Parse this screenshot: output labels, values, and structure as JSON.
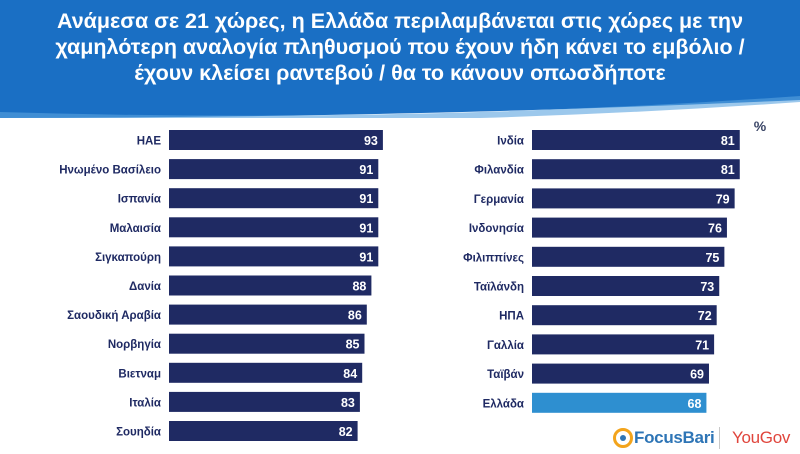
{
  "header": {
    "title_lines": [
      "Ανάμεσα σε  21 χώρες, η Ελλάδα περιλαμβάνεται στις χώρες με την",
      "χαμηλότερη αναλογία πληθυσμού που έχουν ήδη κάνει το εμβόλιο /",
      "έχουν κλείσει ραντεβού / θα το κάνουν οπωσδήποτε"
    ]
  },
  "colors": {
    "header_bg": "#1a6fc4",
    "bar": "#1f2a63",
    "highlight_bar": "#2e8fd0",
    "label": "#1f2a63"
  },
  "chart_data": [
    {
      "type": "bar",
      "orientation": "horizontal",
      "title": "",
      "xlabel": "",
      "ylabel": "",
      "xlim": [
        0,
        100
      ],
      "categories": [
        "ΗΑΕ",
        "Ηνωμένο Βασίλειο",
        "Ισπανία",
        "Μαλαισία",
        "Σιγκαπούρη",
        "Δανία",
        "Σαουδική Αραβία",
        "Νορβηγία",
        "Βιετναμ",
        "Ιταλία",
        "Σουηδία"
      ],
      "values": [
        93,
        91,
        91,
        91,
        91,
        88,
        86,
        85,
        84,
        83,
        82
      ],
      "highlight": []
    },
    {
      "type": "bar",
      "orientation": "horizontal",
      "title": "",
      "xlabel": "",
      "ylabel": "",
      "unit_label": "%",
      "xlim": [
        0,
        100
      ],
      "categories": [
        "Ινδία",
        "Φιλανδία",
        "Γερμανία",
        "Ινδονησία",
        "Φιλιππίνες",
        "Ταϊλάνδη",
        "ΗΠΑ",
        "Γαλλία",
        "Ταϊβάν",
        "Ελλάδα"
      ],
      "values": [
        81,
        81,
        79,
        76,
        75,
        73,
        72,
        71,
        69,
        68
      ],
      "highlight": [
        "Ελλάδα"
      ]
    }
  ],
  "logos": {
    "focusbari": "FocusBari",
    "yougov": "YouGov"
  }
}
